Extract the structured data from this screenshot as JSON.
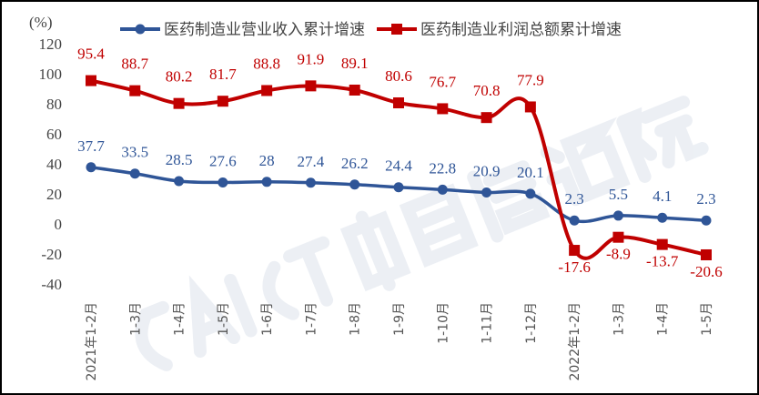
{
  "chart_data": {
    "type": "line",
    "ylabel": "(%)",
    "ylim": [
      -40,
      120
    ],
    "yticks": [
      -40,
      -20,
      0,
      20,
      40,
      60,
      80,
      100,
      120
    ],
    "grid": false,
    "legend_position": "top",
    "categories": [
      "2021年1-2月",
      "1-3月",
      "1-4月",
      "1-5月",
      "1-6月",
      "1-7月",
      "1-8月",
      "1-9月",
      "1-10月",
      "1-11月",
      "1-12月",
      "2022年1-2月",
      "1-3月",
      "1-4月",
      "1-5月"
    ],
    "series": [
      {
        "name": "医药制造业营业收入累计增速",
        "color": "#2F5597",
        "marker": "circle",
        "values": [
          37.7,
          33.5,
          28.5,
          27.6,
          28,
          27.4,
          26.2,
          24.4,
          22.8,
          20.9,
          20.1,
          2.3,
          5.5,
          4.1,
          2.3
        ]
      },
      {
        "name": "医药制造业利润总额累计增速",
        "color": "#C00000",
        "marker": "square",
        "values": [
          95.4,
          88.7,
          80.2,
          81.7,
          88.8,
          91.9,
          89.1,
          80.6,
          76.7,
          70.8,
          77.9,
          -17.6,
          -8.9,
          -13.7,
          -20.6
        ]
      }
    ],
    "watermark": "CAICT 中国信通院"
  }
}
